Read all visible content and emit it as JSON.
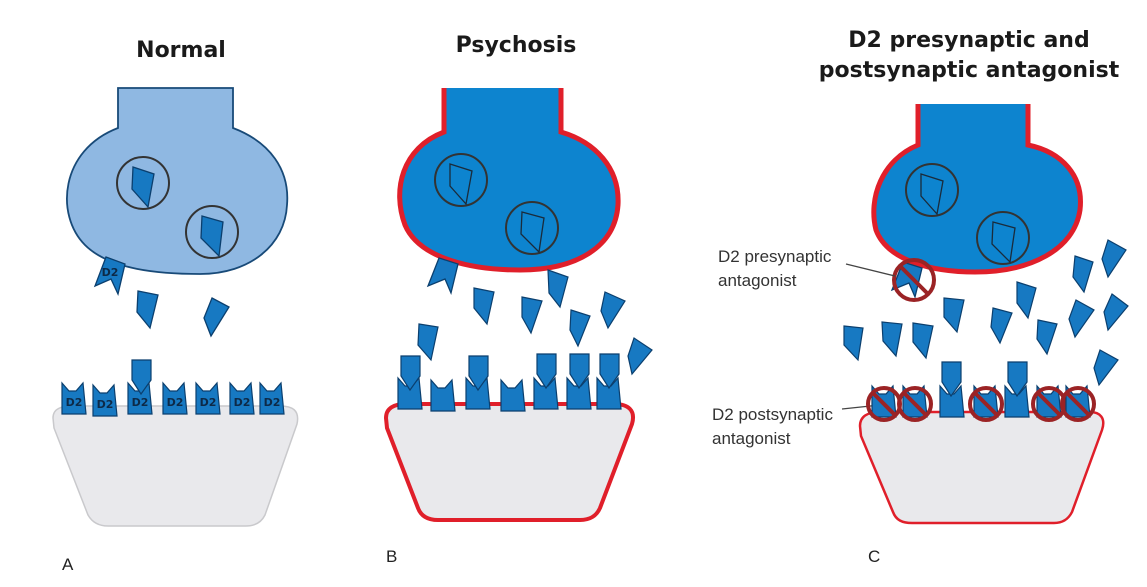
{
  "colors": {
    "normal_neuron": "#8fb8e2",
    "active_neuron": "#0d84cf",
    "dopamine": "#1779c2",
    "receptor": "#1779c2",
    "cell_membrane_psychosis": "#e01f2a",
    "postsynaptic_fill": "#e9e9ec",
    "antagonist_ring": "#9b2325"
  },
  "panels": [
    {
      "title_lines": [
        "Normal"
      ],
      "letter": "A",
      "receptor_label": "D2",
      "presynaptic_receptor_label": "D2"
    },
    {
      "title_lines": [
        "Psychosis"
      ],
      "letter": "B"
    },
    {
      "title_lines": [
        "D2  presynaptic and",
        "postsynaptic antagonist"
      ],
      "letter": "C",
      "annotations": [
        {
          "lines": [
            "D2 presynaptic",
            "antagonist"
          ]
        },
        {
          "lines": [
            "D2 postsynaptic",
            "antagonist"
          ]
        }
      ]
    }
  ],
  "icons": {
    "dopamine": "dopamine-molecule-icon",
    "receptor": "d2-receptor-icon",
    "vesicle": "vesicle-icon",
    "antagonist": "no-symbol-icon"
  }
}
